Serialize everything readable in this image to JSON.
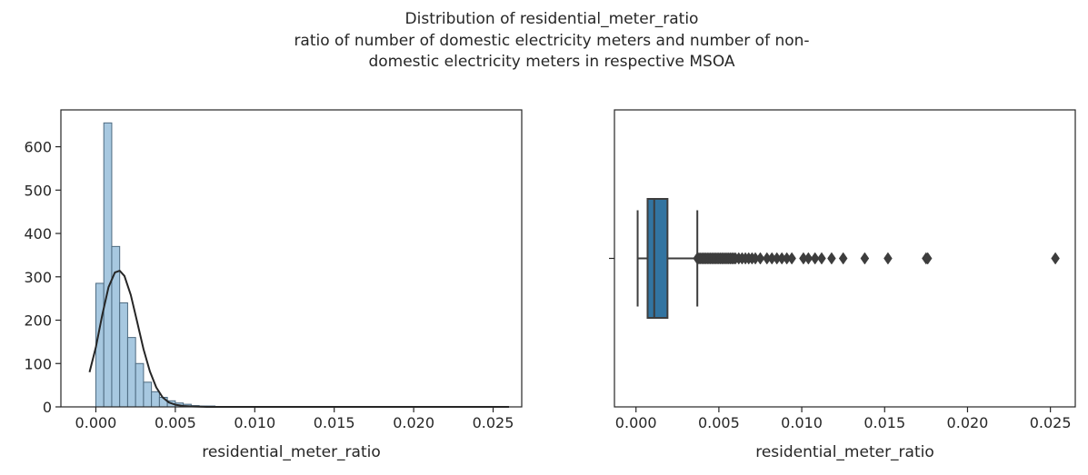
{
  "figure": {
    "suptitle_lines": [
      "Distribution of residential_meter_ratio",
      "ratio of number of domestic electricity meters and number of non-",
      "domestic electricity meters in respective MSOA"
    ]
  },
  "chart_data": [
    {
      "type": "bar",
      "subtype": "histogram_with_density_curve",
      "title": "",
      "xlabel": "residential_meter_ratio",
      "ylabel": "",
      "xlim": [
        -0.0022,
        0.0268
      ],
      "ylim": [
        0,
        685
      ],
      "xticks": [
        0.0,
        0.005,
        0.01,
        0.015,
        0.02,
        0.025
      ],
      "xtick_labels": [
        "0.000",
        "0.005",
        "0.010",
        "0.015",
        "0.020",
        "0.025"
      ],
      "yticks": [
        0,
        100,
        200,
        300,
        400,
        500,
        600
      ],
      "ytick_labels": [
        "0",
        "100",
        "200",
        "300",
        "400",
        "500",
        "600"
      ],
      "bins": {
        "start": 0.0,
        "width": 0.0005,
        "counts": [
          285,
          655,
          370,
          240,
          160,
          100,
          57,
          35,
          22,
          14,
          9,
          6,
          3,
          2,
          2,
          1,
          1,
          1,
          1,
          1,
          1,
          1,
          1,
          0,
          0,
          0,
          0,
          0,
          1,
          0,
          0,
          1,
          0,
          0,
          0,
          0,
          0,
          0,
          0,
          0,
          0,
          0,
          0,
          0,
          0,
          0,
          0,
          0,
          0,
          0,
          1
        ]
      },
      "density_curve": {
        "x": [
          -0.0004,
          0.0,
          0.0004,
          0.0008,
          0.0012,
          0.0015,
          0.0018,
          0.0022,
          0.0026,
          0.003,
          0.0034,
          0.0038,
          0.0042,
          0.0046,
          0.005,
          0.0055,
          0.006,
          0.007,
          0.008,
          0.01,
          0.015,
          0.02,
          0.026
        ],
        "y": [
          80,
          138,
          212,
          276,
          310,
          314,
          302,
          258,
          196,
          133,
          82,
          45,
          22,
          10,
          5,
          2,
          1,
          0,
          0,
          0,
          0,
          0,
          0
        ]
      },
      "colors": {
        "bar_fill": "#a7c8e0",
        "bar_edge": "#4d6a80",
        "curve": "#262626"
      },
      "grid": false
    },
    {
      "type": "box",
      "title": "",
      "xlabel": "residential_meter_ratio",
      "ylabel": "",
      "xlim": [
        -0.0013,
        0.0265
      ],
      "xticks": [
        0.0,
        0.005,
        0.01,
        0.015,
        0.02,
        0.025
      ],
      "xtick_labels": [
        "0.000",
        "0.005",
        "0.010",
        "0.015",
        "0.020",
        "0.025"
      ],
      "box": {
        "whisker_low": 0.0001,
        "q1": 0.0007,
        "median": 0.0011,
        "q3": 0.0019,
        "whisker_high": 0.0037
      },
      "outliers": [
        0.0037,
        0.0038,
        0.0039,
        0.004,
        0.0041,
        0.0042,
        0.0043,
        0.0044,
        0.0045,
        0.0046,
        0.0047,
        0.0048,
        0.0049,
        0.005,
        0.0051,
        0.0052,
        0.0053,
        0.0054,
        0.0055,
        0.0056,
        0.0057,
        0.0058,
        0.0059,
        0.006,
        0.0062,
        0.0064,
        0.0066,
        0.0068,
        0.007,
        0.0072,
        0.0075,
        0.0079,
        0.0082,
        0.0085,
        0.0088,
        0.0091,
        0.0094,
        0.0101,
        0.0104,
        0.0108,
        0.0112,
        0.0118,
        0.0125,
        0.0138,
        0.0152,
        0.0175,
        0.0176,
        0.0253
      ],
      "colors": {
        "box_fill": "#3274a1",
        "lines": "#3d3d3d",
        "outliers": "#3d3d3d"
      },
      "grid": false
    }
  ]
}
